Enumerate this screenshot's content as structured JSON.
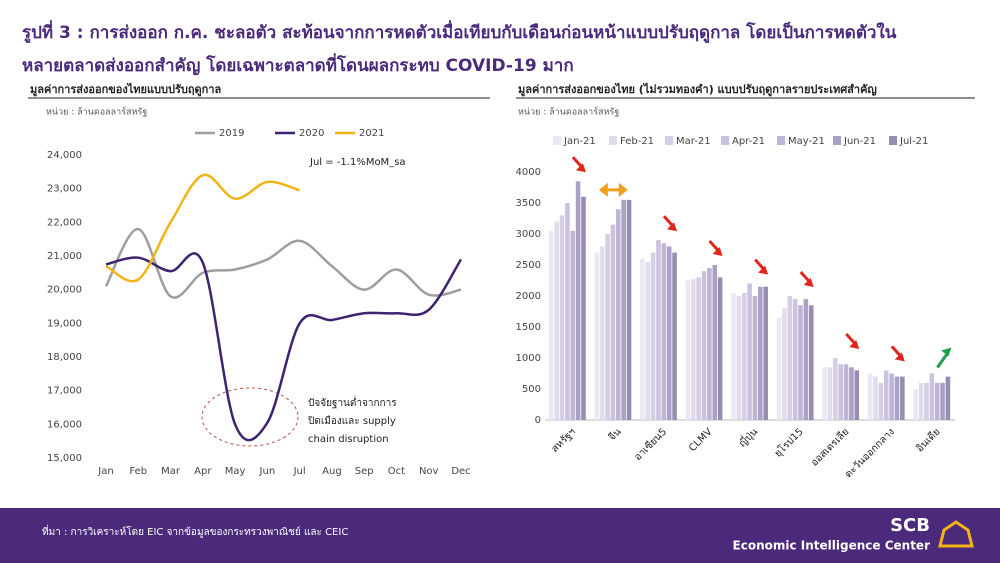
{
  "header": {
    "title_lines": [
      "รูปที่ 3 : การส่งออก ก.ค. ชะลอตัว สะท้อนจากการหดตัวเมื่อเทียบกับเดือนก่อนหน้าแบบปรับฤดูกาล โดยเป็นการหดตัวใน",
      "หลายตลาดส่งออกสำคัญ โดยเฉพาะตลาดที่โดนผลกระทบ COVID-19 มาก"
    ]
  },
  "footer": {
    "source": "ที่มา : การวิเคราะห์โดย EIC จากข้อมูลของกระทรวงพาณิชย์ และ CEIC",
    "logo": "SCB",
    "center": "Economic Intelligence Center"
  },
  "chart_data": [
    {
      "type": "line",
      "title": "มูลค่าการส่งออกของไทยแบบปรับฤดูกาล",
      "subtitle": "หน่วย : ล้านดอลลาร์สหรัฐ",
      "categories": [
        "Jan",
        "Feb",
        "Mar",
        "Apr",
        "May",
        "Jun",
        "Jul",
        "Aug",
        "Sep",
        "Oct",
        "Nov",
        "Dec"
      ],
      "series": [
        {
          "name": "2019",
          "color": "#9e9e9e",
          "values": [
            20100,
            21800,
            19800,
            20500,
            20600,
            20900,
            21450,
            20700,
            20000,
            20600,
            19850,
            20000
          ]
        },
        {
          "name": "2020",
          "color": "#3d2370",
          "values": [
            20750,
            20950,
            20550,
            20800,
            16000,
            16050,
            19000,
            19100,
            19300,
            19300,
            19400,
            20900
          ]
        },
        {
          "name": "2021",
          "color": "#f2b415",
          "values": [
            20700,
            20300,
            22000,
            23400,
            22700,
            23200,
            22950,
            null,
            null,
            null,
            null,
            null
          ]
        }
      ],
      "ylim": [
        15000,
        24000
      ],
      "yticks": [
        {
          "value": 15000,
          "label": "15,000"
        },
        {
          "value": 16000,
          "label": "16,000"
        },
        {
          "value": 17000,
          "label": "17,000"
        },
        {
          "value": 18000,
          "label": "18,000"
        },
        {
          "value": 19000,
          "label": "19,000"
        },
        {
          "value": 20000,
          "label": "20,000"
        },
        {
          "value": 21000,
          "label": "21,000"
        },
        {
          "value": 22000,
          "label": "22,000"
        },
        {
          "value": 23000,
          "label": "23,000"
        },
        {
          "value": 24000,
          "label": "24,000"
        }
      ],
      "annotations": [
        "Jul = -1.1%MoM_sa",
        "ปัจจัยฐานต่ำจากการ",
        "ปิดเมืองและ supply",
        "chain disruption"
      ]
    },
    {
      "type": "bar",
      "title": "มูลค่าการส่งออกของไทย (ไม่รวมทองคำ) แบบปรับฤดูกาลรายประเทศสำคัญ",
      "subtitle": "หน่วย : ล้านดอลลาร์สหรัฐ",
      "categories": [
        "สหรัฐฯ",
        "จีน",
        "อาเซียน5",
        "CLMV",
        "ญี่ปุ่น",
        "ยุโรป15",
        "ออสเตรเลีย",
        "ตะวันออกกลาง",
        "อินเดีย"
      ],
      "series": [
        {
          "name": "Jan-21",
          "color": "#ebe8f3",
          "values": [
            3050,
            2700,
            2600,
            2250,
            2050,
            1650,
            850,
            750,
            500
          ]
        },
        {
          "name": "Feb-21",
          "color": "#e0dcec",
          "values": [
            3200,
            2800,
            2550,
            2270,
            2000,
            1800,
            850,
            700,
            600
          ]
        },
        {
          "name": "Mar-21",
          "color": "#d5cfe5",
          "values": [
            3300,
            3000,
            2700,
            2300,
            2050,
            2000,
            1000,
            600,
            600
          ]
        },
        {
          "name": "Apr-21",
          "color": "#cac2de",
          "values": [
            3500,
            3150,
            2900,
            2400,
            2200,
            1950,
            900,
            800,
            750
          ]
        },
        {
          "name": "May-21",
          "color": "#bdb5d5",
          "values": [
            3050,
            3400,
            2850,
            2450,
            2000,
            1850,
            900,
            750,
            600
          ]
        },
        {
          "name": "Jun-21",
          "color": "#aaa1c4",
          "values": [
            3850,
            3550,
            2800,
            2500,
            2150,
            1950,
            850,
            700,
            600
          ]
        },
        {
          "name": "Jul-21",
          "color": "#968db1",
          "values": [
            3600,
            3550,
            2700,
            2300,
            2150,
            1850,
            800,
            700,
            700
          ]
        }
      ],
      "ylim": [
        0,
        4000
      ],
      "yticks": [
        0,
        500,
        1000,
        1500,
        2000,
        2500,
        3000,
        3500,
        4000
      ]
    }
  ]
}
